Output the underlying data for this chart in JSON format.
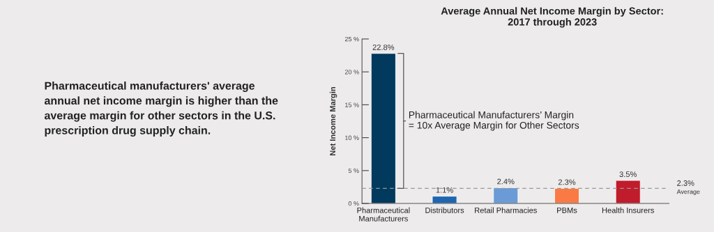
{
  "chart_data": {
    "type": "bar",
    "title": "Average Annual Net Income Margin by Sector:\n2017 through 2023",
    "ylabel": "Net Income Margin",
    "categories": [
      "Pharmaceutical\nManufacturers",
      "Distributors",
      "Retail Pharmacies",
      "PBMs",
      "Health Insurers"
    ],
    "values": [
      22.8,
      1.1,
      2.4,
      2.3,
      3.5
    ],
    "colors": [
      "#023a5e",
      "#1f66b0",
      "#6a9bd6",
      "#f97a45",
      "#c01c2c"
    ],
    "value_labels": [
      "22.8%",
      "1.1%",
      "2.4%",
      "2.3%",
      "3.5%"
    ],
    "ylim": [
      0,
      25
    ],
    "yticks": [
      {
        "value": 0,
        "label": "0 %"
      },
      {
        "value": 5,
        "label": "5 %"
      },
      {
        "value": 10,
        "label": "10 %"
      },
      {
        "value": 15,
        "label": "15 %"
      },
      {
        "value": 20,
        "label": "20 %"
      },
      {
        "value": 25,
        "label": "25 %"
      }
    ],
    "ref_lines": [
      {
        "axis": "y",
        "value": 2.3,
        "label": "2.3%",
        "color": "#999999",
        "line_style": "dashed"
      }
    ],
    "annotations": [
      "Pharmaceutical manufacturers' average annual net income margin is higher than the average margin for other sectors in the U.S. prescription drug supply chain.",
      "Pharmaceutical Manufacturers’ Margin\n= 10x Average Margin for Other Sectors",
      "Average"
    ],
    "grid": false,
    "legend": false
  }
}
